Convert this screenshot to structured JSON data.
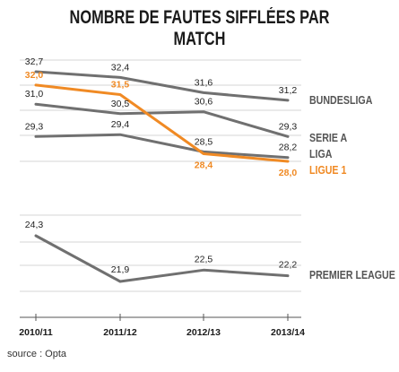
{
  "title": "NOMBRE DE FAUTES SIFFLÉES PAR MATCH",
  "source": "source : Opta",
  "colors": {
    "series": "#707070",
    "highlight": "#f08a24",
    "grid": "#d6d6d6",
    "axis": "#555555"
  },
  "chart_data": {
    "type": "line",
    "categories": [
      "2010/11",
      "2011/12",
      "2012/13",
      "2013/14"
    ],
    "series": [
      {
        "name": "BUNDESLIGA",
        "values": [
          32.7,
          32.4,
          31.6,
          31.2
        ],
        "labels": [
          "32,7",
          "32,4",
          "31,6",
          "31,2"
        ],
        "highlight": false
      },
      {
        "name": "SERIE A",
        "values": [
          31.0,
          30.5,
          30.6,
          29.3
        ],
        "labels": [
          "31,0",
          "30,5",
          "30,6",
          "29,3"
        ],
        "highlight": false
      },
      {
        "name": "LIGA",
        "values": [
          29.3,
          29.4,
          28.5,
          28.2
        ],
        "labels": [
          "29,3",
          "29,4",
          "28,5",
          "28,2"
        ],
        "highlight": false
      },
      {
        "name": "LIGUE 1",
        "values": [
          32.0,
          31.5,
          28.4,
          28.0
        ],
        "labels": [
          "32,0",
          "31,5",
          "28,4",
          "28,0"
        ],
        "highlight": true
      },
      {
        "name": "PREMIER LEAGUE",
        "values": [
          24.3,
          21.9,
          22.5,
          22.2
        ],
        "labels": [
          "24,3",
          "21,9",
          "22,5",
          "22,2"
        ],
        "highlight": false
      }
    ],
    "grid": true,
    "legend": "right, at line ends"
  }
}
